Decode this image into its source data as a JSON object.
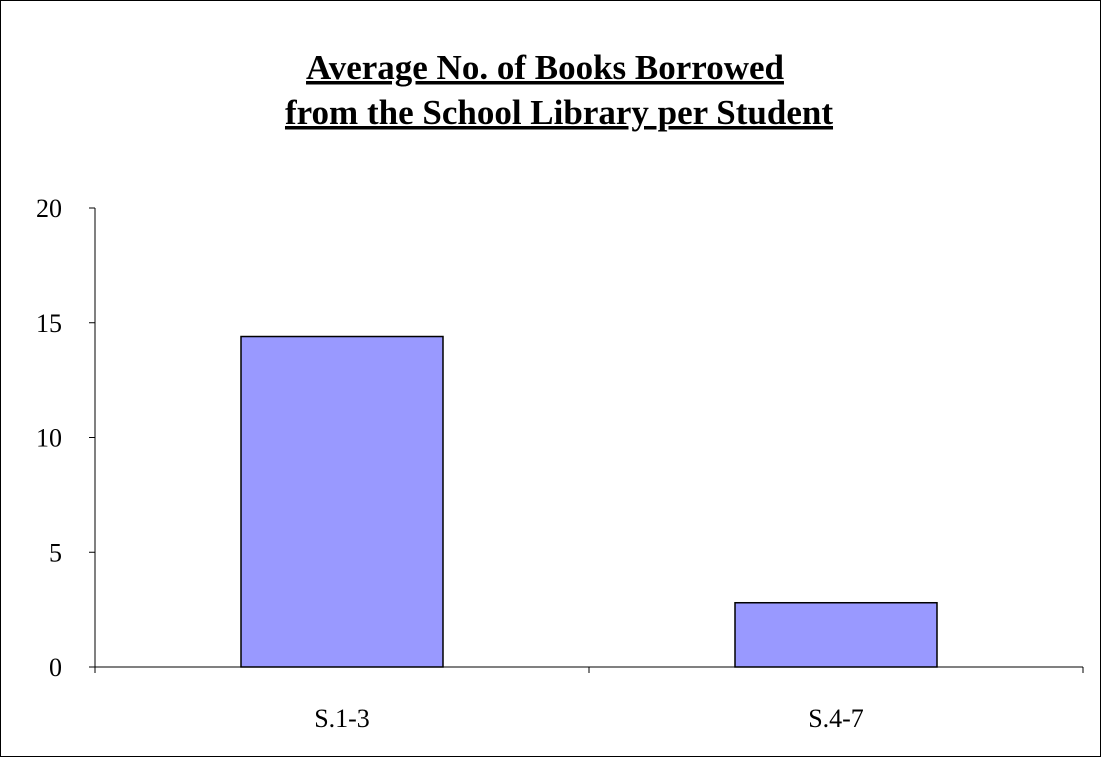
{
  "chart_data": {
    "type": "bar",
    "title_lines": [
      "Average No. of Books Borrowed",
      "from the School Library per Student"
    ],
    "categories": [
      "S.1-3",
      "S.4-7"
    ],
    "values": [
      14.4,
      2.8
    ],
    "xlabel": "",
    "ylabel": "",
    "ylim": [
      0,
      20
    ],
    "yticks": [
      "0",
      "5",
      "10",
      "15",
      "20"
    ],
    "ytick_values": [
      0,
      5,
      10,
      15,
      20
    ],
    "grid": false,
    "legend": "none",
    "colors": {
      "bar_fill": "#9999ff",
      "bar_stroke": "#000000",
      "axis": "#000000",
      "frame": "#000000"
    }
  }
}
